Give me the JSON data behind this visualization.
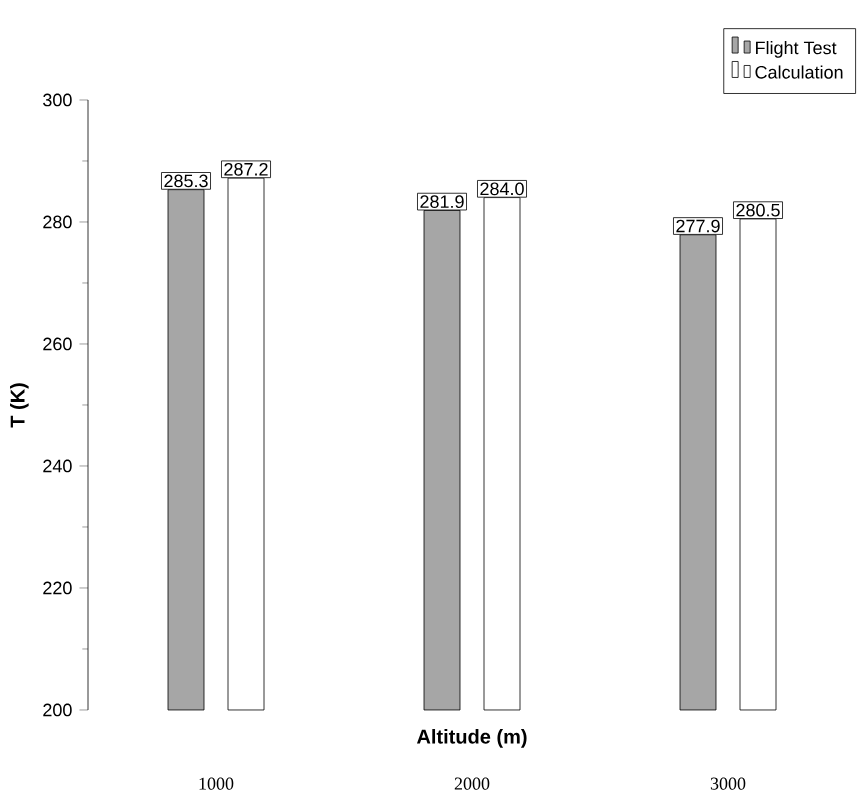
{
  "chart_data": {
    "type": "bar",
    "xlabel": "Altitude (m)",
    "ylabel": "T (K)",
    "categories": [
      "1000",
      "2000",
      "3000"
    ],
    "series": [
      {
        "name": "Flight Test",
        "color": "#a6a6a6",
        "values": [
          285.3,
          281.9,
          277.9
        ],
        "value_labels": [
          "285.3",
          "281.9",
          "277.9"
        ]
      },
      {
        "name": "Calculation",
        "color": "#ffffff",
        "values": [
          287.2,
          284.0,
          280.5
        ],
        "value_labels": [
          "287.2",
          "284.0",
          "280.5"
        ]
      }
    ],
    "ylim": [
      200,
      300
    ],
    "yticks": [
      200,
      220,
      240,
      260,
      280,
      300
    ],
    "legend": "top right"
  }
}
